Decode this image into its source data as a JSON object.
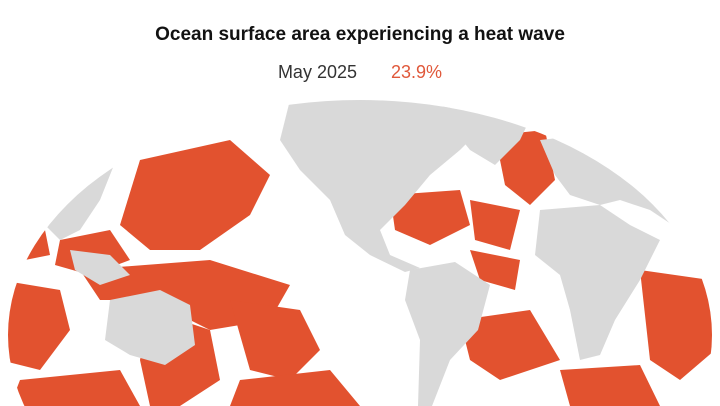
{
  "header": {
    "title": "Ocean surface area experiencing a heat wave",
    "date": "May 2025",
    "share": "23.9%"
  }
}
